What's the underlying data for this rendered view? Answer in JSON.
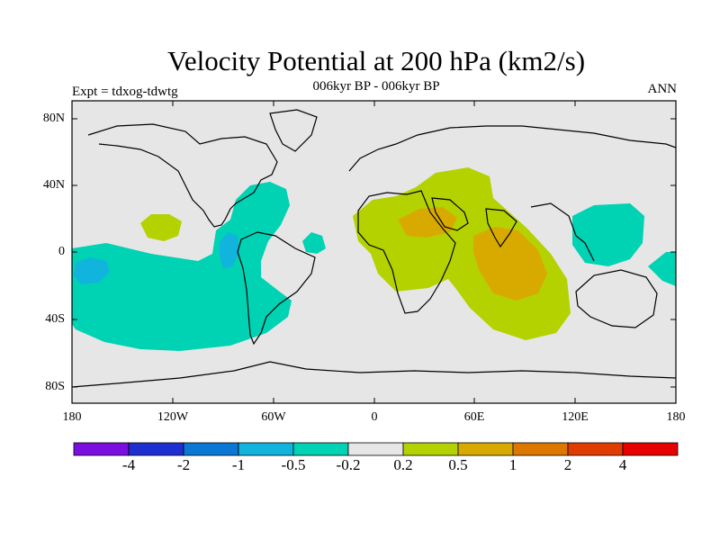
{
  "title": "Velocity Potential at 200 hPa (km2/s)",
  "subtitle": "006kyr BP - 006kyr BP",
  "left_label": "Expt = tdxog-tdwtg",
  "right_label": "ANN",
  "map": {
    "projection": "cylindrical equidistant",
    "lon_range": [
      -180,
      180
    ],
    "lat_range": [
      -90,
      90
    ],
    "background_color": "#e6e6e6",
    "coastline_color": "#000000",
    "x_ticks": [
      "180",
      "120W",
      "60W",
      "0",
      "60E",
      "120E",
      "180"
    ],
    "y_ticks": [
      "80N",
      "40N",
      "0",
      "40S",
      "80S"
    ]
  },
  "colorbar": {
    "colors": [
      "#7a0fe0",
      "#1e2fd2",
      "#0a78d4",
      "#10b4dc",
      "#00d2b4",
      "#e6e6e6",
      "#b4d200",
      "#d8aa00",
      "#dc7800",
      "#e03c00",
      "#e60000"
    ],
    "labels": [
      "-4",
      "-2",
      "-1",
      "-0.5",
      "-0.2",
      "0.2",
      "0.5",
      "1",
      "2",
      "4"
    ]
  },
  "regions": [
    {
      "name": "central-pacific-negative",
      "level": "-0.2 to -0.5"
    },
    {
      "name": "south-pacific-negative",
      "level": "-0.2 to -0.5"
    },
    {
      "name": "western-pacific-negative",
      "level": "-0.2 to -0.5"
    },
    {
      "name": "africa-indian-positive",
      "level": "0.2 to 1"
    },
    {
      "name": "east-pacific-positive",
      "level": "0.2 to 0.5"
    },
    {
      "name": "atlantic-negative",
      "level": "-0.2 to -0.5"
    }
  ]
}
